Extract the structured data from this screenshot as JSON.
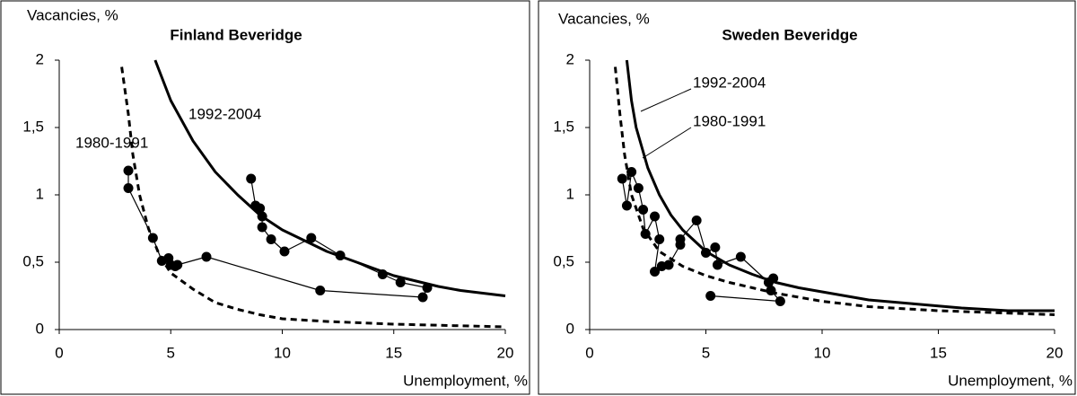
{
  "chart_data": [
    {
      "type": "line",
      "title": "Finland Beveridge",
      "ylabel": "Vacancies, %",
      "xlabel": "Unemployment, %",
      "annotations": [
        "1992-2004",
        "1980-1991"
      ],
      "xlim": [
        0,
        20
      ],
      "ylim": [
        0,
        2
      ],
      "xticks": [
        0,
        5,
        10,
        15,
        20
      ],
      "yticks": [
        0,
        {
          "value": 0.5,
          "label": "0,5"
        },
        1,
        {
          "value": 1.5,
          "label": "1,5"
        },
        2
      ],
      "series": [
        {
          "color": "#000000",
          "style": "thick",
          "x": [
            4.3,
            5,
            6,
            7,
            8,
            9,
            10,
            11,
            12,
            13,
            14,
            15,
            16,
            17,
            18,
            19,
            20
          ],
          "values": [
            2.0,
            1.7,
            1.4,
            1.17,
            1.0,
            0.85,
            0.74,
            0.66,
            0.58,
            0.52,
            0.46,
            0.4,
            0.36,
            0.32,
            0.29,
            0.27,
            0.25
          ]
        },
        {
          "color": "#000000",
          "style": "dashed",
          "x": [
            2.8,
            3.1,
            3.3,
            3.6,
            4,
            4.5,
            5,
            6,
            7,
            8,
            9,
            10,
            12,
            15,
            20
          ],
          "values": [
            1.95,
            1.6,
            1.3,
            1.0,
            0.75,
            0.55,
            0.42,
            0.3,
            0.2,
            0.15,
            0.11,
            0.08,
            0.06,
            0.04,
            0.02
          ]
        },
        {
          "color": "#000000",
          "style": "thin",
          "markers": true,
          "x": [
            3.1,
            3.1,
            4.2,
            4.6,
            4.9,
            5.0,
            5.2,
            5.3,
            6.6,
            11.7,
            16.3,
            16.5,
            15.3,
            14.5,
            12.6,
            11.3,
            10.1,
            9.5,
            9.1,
            9.1,
            9.0,
            8.8,
            8.6
          ],
          "values": [
            1.18,
            1.05,
            0.68,
            0.51,
            0.53,
            0.48,
            0.47,
            0.48,
            0.54,
            0.29,
            0.24,
            0.31,
            0.35,
            0.41,
            0.55,
            0.68,
            0.58,
            0.67,
            0.76,
            0.84,
            0.9,
            0.92,
            1.12
          ]
        }
      ]
    },
    {
      "type": "line",
      "title": "Sweden Beveridge",
      "ylabel": "Vacancies, %",
      "xlabel": "Unemployment, %",
      "annotations": [
        "1992-2004",
        "1980-1991"
      ],
      "xlim": [
        0,
        20
      ],
      "ylim": [
        0,
        2
      ],
      "xticks": [
        0,
        5,
        10,
        15,
        20
      ],
      "yticks": [
        0,
        {
          "value": 0.5,
          "label": "0,5"
        },
        1,
        {
          "value": 1.5,
          "label": "1,5"
        },
        2
      ],
      "series": [
        {
          "color": "#000000",
          "style": "thick",
          "x": [
            1.6,
            1.8,
            2,
            2.5,
            3,
            3.5,
            4,
            5,
            6,
            7,
            8,
            9,
            10,
            12,
            14,
            16,
            18,
            20
          ],
          "values": [
            2.0,
            1.7,
            1.5,
            1.2,
            1.0,
            0.85,
            0.74,
            0.58,
            0.48,
            0.41,
            0.35,
            0.31,
            0.28,
            0.22,
            0.19,
            0.16,
            0.14,
            0.14
          ]
        },
        {
          "color": "#000000",
          "style": "dashed",
          "x": [
            1.1,
            1.3,
            1.5,
            1.8,
            2.3,
            3,
            4,
            5,
            6,
            7,
            8,
            10,
            12,
            15,
            20
          ],
          "values": [
            1.95,
            1.6,
            1.3,
            1.0,
            0.75,
            0.58,
            0.47,
            0.4,
            0.35,
            0.31,
            0.27,
            0.21,
            0.17,
            0.14,
            0.11
          ]
        },
        {
          "color": "#000000",
          "style": "thin",
          "markers": true,
          "x": [
            1.4,
            1.6,
            1.8,
            2.1,
            2.3,
            2.4,
            2.8,
            3.0,
            2.8,
            3.1,
            3.4,
            3.9,
            3.9,
            4.6,
            5.0,
            5.4,
            5.5,
            6.5,
            7.7,
            7.9,
            7.8,
            8.2,
            5.2
          ],
          "values": [
            1.12,
            0.92,
            1.17,
            1.05,
            0.89,
            0.71,
            0.84,
            0.67,
            0.43,
            0.47,
            0.48,
            0.63,
            0.67,
            0.81,
            0.57,
            0.61,
            0.48,
            0.54,
            0.35,
            0.38,
            0.29,
            0.21,
            0.25
          ]
        }
      ]
    }
  ]
}
